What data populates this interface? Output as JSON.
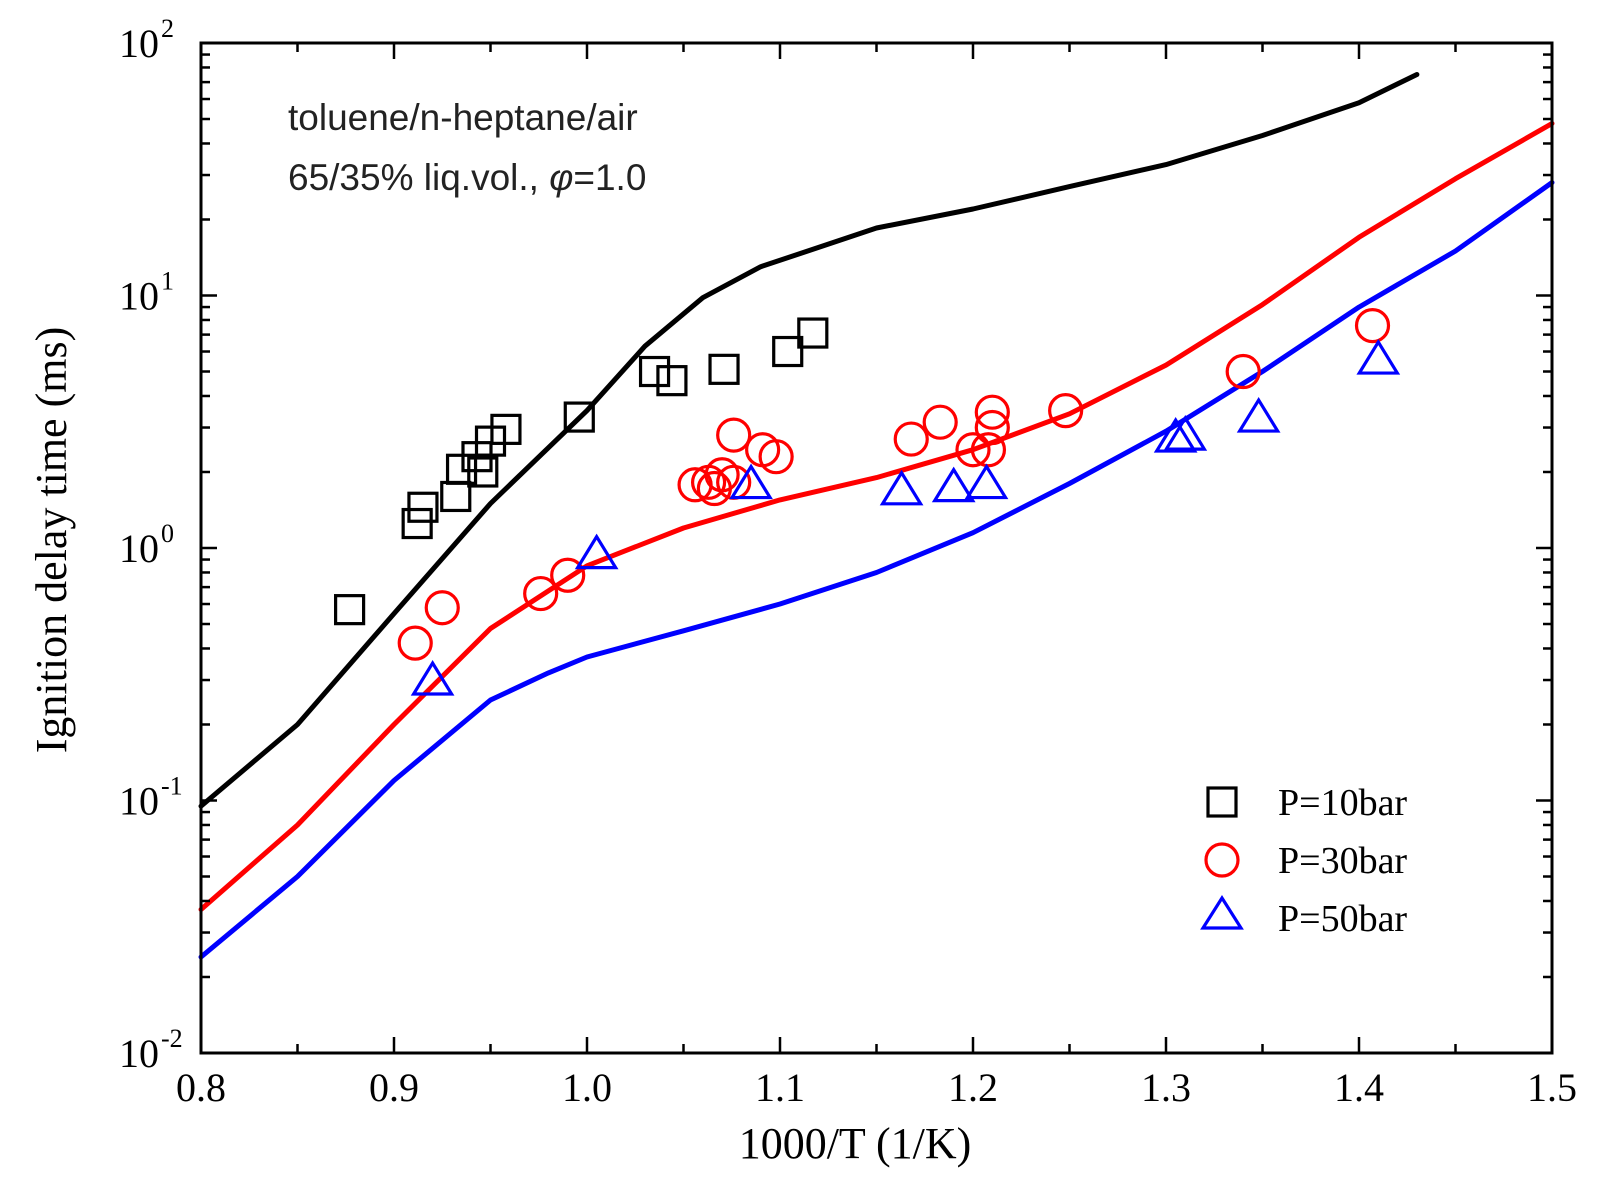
{
  "chart_data": {
    "type": "scatter",
    "y_scale": "log",
    "title": "",
    "xlabel": "1000/T (1/K)",
    "ylabel": "Ignition delay time (ms)",
    "xlim": [
      0.8,
      1.5
    ],
    "ylim": [
      0.01,
      100
    ],
    "x_ticks": [
      "0.8",
      "0.9",
      "1.0",
      "1.1",
      "1.2",
      "1.3",
      "1.4",
      "1.5"
    ],
    "y_ticks": [
      {
        "base": "10",
        "exp": "-2"
      },
      {
        "base": "10",
        "exp": "-1"
      },
      {
        "base": "10",
        "exp": "0"
      },
      {
        "base": "10",
        "exp": "1"
      },
      {
        "base": "10",
        "exp": "2"
      }
    ],
    "annotation": {
      "line1": "toluene/n-heptane/air",
      "line2_prefix": "65/35% liq.vol., ",
      "phi_symbol": "φ",
      "line2_suffix": "=1.0"
    },
    "legend_position": "bottom-right",
    "series": [
      {
        "name": "P=10bar",
        "marker": "square",
        "color": "#000000",
        "points": [
          [
            0.877,
            0.57
          ],
          [
            0.912,
            1.25
          ],
          [
            0.915,
            1.45
          ],
          [
            0.932,
            1.6
          ],
          [
            0.935,
            2.05
          ],
          [
            0.943,
            2.3
          ],
          [
            0.946,
            2.0
          ],
          [
            0.95,
            2.65
          ],
          [
            0.958,
            2.95
          ],
          [
            0.996,
            3.3
          ],
          [
            1.035,
            5.0
          ],
          [
            1.044,
            4.6
          ],
          [
            1.071,
            5.1
          ],
          [
            1.104,
            6.0
          ],
          [
            1.117,
            7.1
          ]
        ],
        "model": [
          [
            0.8,
            0.095
          ],
          [
            0.85,
            0.2
          ],
          [
            0.9,
            0.55
          ],
          [
            0.95,
            1.5
          ],
          [
            1.0,
            3.5
          ],
          [
            1.03,
            6.3
          ],
          [
            1.06,
            9.8
          ],
          [
            1.09,
            13.0
          ],
          [
            1.12,
            15.5
          ],
          [
            1.15,
            18.5
          ],
          [
            1.2,
            22.0
          ],
          [
            1.25,
            27.0
          ],
          [
            1.3,
            33.0
          ],
          [
            1.35,
            43.0
          ],
          [
            1.4,
            58.0
          ],
          [
            1.43,
            75.0
          ]
        ]
      },
      {
        "name": "P=30bar",
        "marker": "circle",
        "color": "#ff0000",
        "points": [
          [
            0.911,
            0.42
          ],
          [
            0.925,
            0.58
          ],
          [
            0.976,
            0.66
          ],
          [
            0.99,
            0.78
          ],
          [
            1.056,
            1.78
          ],
          [
            1.063,
            1.82
          ],
          [
            1.066,
            1.72
          ],
          [
            1.07,
            1.95
          ],
          [
            1.076,
            2.8
          ],
          [
            1.076,
            1.82
          ],
          [
            1.091,
            2.45
          ],
          [
            1.098,
            2.3
          ],
          [
            1.168,
            2.7
          ],
          [
            1.183,
            3.15
          ],
          [
            1.2,
            2.45
          ],
          [
            1.208,
            2.45
          ],
          [
            1.21,
            3.0
          ],
          [
            1.21,
            3.45
          ],
          [
            1.248,
            3.5
          ],
          [
            1.34,
            5.0
          ],
          [
            1.407,
            7.6
          ]
        ],
        "model": [
          [
            0.8,
            0.037
          ],
          [
            0.85,
            0.08
          ],
          [
            0.9,
            0.2
          ],
          [
            0.95,
            0.48
          ],
          [
            1.0,
            0.85
          ],
          [
            1.05,
            1.2
          ],
          [
            1.1,
            1.55
          ],
          [
            1.15,
            1.9
          ],
          [
            1.2,
            2.45
          ],
          [
            1.25,
            3.4
          ],
          [
            1.3,
            5.3
          ],
          [
            1.35,
            9.2
          ],
          [
            1.4,
            17.0
          ],
          [
            1.45,
            29.0
          ],
          [
            1.5,
            48.0
          ]
        ]
      },
      {
        "name": "P=50bar",
        "marker": "triangle",
        "color": "#0000ff",
        "points": [
          [
            0.92,
            0.3
          ],
          [
            1.005,
            0.95
          ],
          [
            1.085,
            1.8
          ],
          [
            1.163,
            1.7
          ],
          [
            1.19,
            1.75
          ],
          [
            1.207,
            1.8
          ],
          [
            1.305,
            2.75
          ],
          [
            1.31,
            2.8
          ],
          [
            1.348,
            3.3
          ],
          [
            1.41,
            5.6
          ]
        ],
        "model": [
          [
            0.8,
            0.024
          ],
          [
            0.85,
            0.05
          ],
          [
            0.9,
            0.12
          ],
          [
            0.95,
            0.25
          ],
          [
            0.98,
            0.32
          ],
          [
            1.0,
            0.37
          ],
          [
            1.05,
            0.47
          ],
          [
            1.1,
            0.6
          ],
          [
            1.15,
            0.8
          ],
          [
            1.2,
            1.15
          ],
          [
            1.25,
            1.8
          ],
          [
            1.3,
            2.9
          ],
          [
            1.35,
            5.0
          ],
          [
            1.4,
            9.0
          ],
          [
            1.45,
            15.0
          ],
          [
            1.5,
            28.0
          ]
        ]
      }
    ]
  }
}
